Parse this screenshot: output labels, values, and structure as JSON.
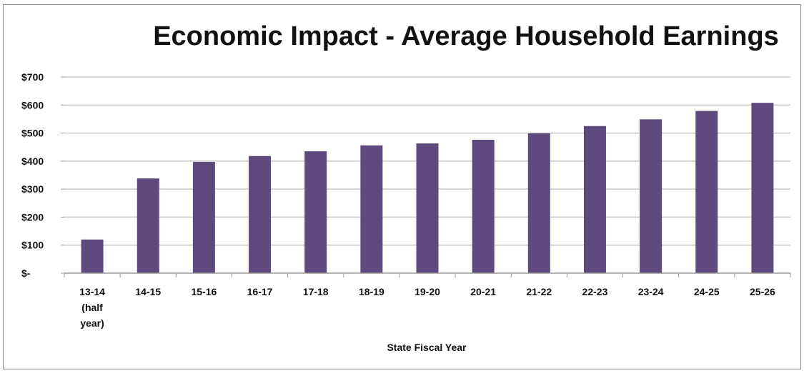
{
  "chart_data": {
    "type": "bar",
    "title": "Economic Impact - Average Household Earnings",
    "xlabel": "State Fiscal Year",
    "ylabel": "",
    "categories": [
      "13-14 (half year)",
      "14-15",
      "15-16",
      "16-17",
      "17-18",
      "18-19",
      "19-20",
      "20-21",
      "21-22",
      "22-23",
      "23-24",
      "24-25",
      "25-26"
    ],
    "category_lines": [
      [
        "13-14",
        "(half",
        "year)"
      ],
      [
        "14-15"
      ],
      [
        "15-16"
      ],
      [
        "16-17"
      ],
      [
        "17-18"
      ],
      [
        "18-19"
      ],
      [
        "19-20"
      ],
      [
        "20-21"
      ],
      [
        "21-22"
      ],
      [
        "22-23"
      ],
      [
        "23-24"
      ],
      [
        "24-25"
      ],
      [
        "25-26"
      ]
    ],
    "values": [
      120,
      338,
      397,
      418,
      435,
      456,
      463,
      476,
      499,
      525,
      549,
      579,
      608
    ],
    "ylim": [
      0,
      700
    ],
    "yticks": [
      0,
      100,
      200,
      300,
      400,
      500,
      600,
      700
    ],
    "ytick_labels": [
      "$-",
      "$100",
      "$200",
      "$300",
      "$400",
      "$500",
      "$600",
      "$700"
    ],
    "grid": true,
    "legend": "none",
    "bar_color": "#5e4a7d",
    "grid_color": "#c8c8c8"
  }
}
